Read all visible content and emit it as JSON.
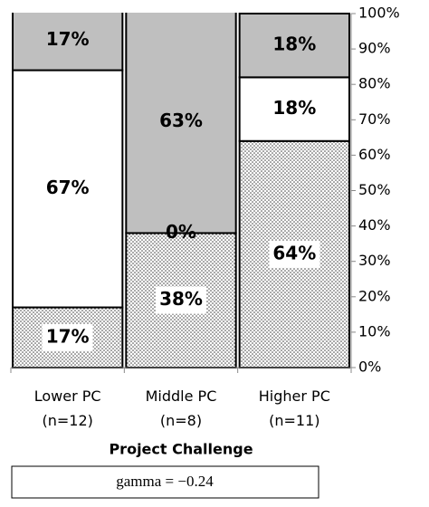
{
  "chart_data": {
    "type": "stacked_bar",
    "categories": [
      "Lower PC\n(n=12)",
      "Middle PC\n(n=8)",
      "Higher PC\n(n=11)"
    ],
    "series": [
      {
        "color": "dotted",
        "values": [
          17,
          38,
          64
        ],
        "value_labels": [
          "17%",
          "38%",
          "64%"
        ]
      },
      {
        "color": "#ffffff",
        "values": [
          67,
          0,
          18
        ],
        "value_labels": [
          "67%",
          "0%",
          "18%"
        ]
      },
      {
        "color": "#bfbfbf",
        "values": [
          17,
          63,
          18
        ],
        "value_labels": [
          "17%",
          "63%",
          "18%"
        ]
      }
    ],
    "ylim": [
      0,
      100
    ],
    "yticks": [
      {
        "value": 0,
        "label": "0%"
      },
      {
        "value": 10,
        "label": "10%"
      },
      {
        "value": 20,
        "label": "20%"
      },
      {
        "value": 30,
        "label": "30%"
      },
      {
        "value": 40,
        "label": "40%"
      },
      {
        "value": 50,
        "label": "50%"
      },
      {
        "value": 60,
        "label": "60%"
      },
      {
        "value": 70,
        "label": "70%"
      },
      {
        "value": 80,
        "label": "80%"
      },
      {
        "value": 90,
        "label": "90%"
      },
      {
        "value": 100,
        "label": "100%"
      }
    ],
    "xlabel": "Project Challenge",
    "annotation": "gamma = −0.24"
  }
}
